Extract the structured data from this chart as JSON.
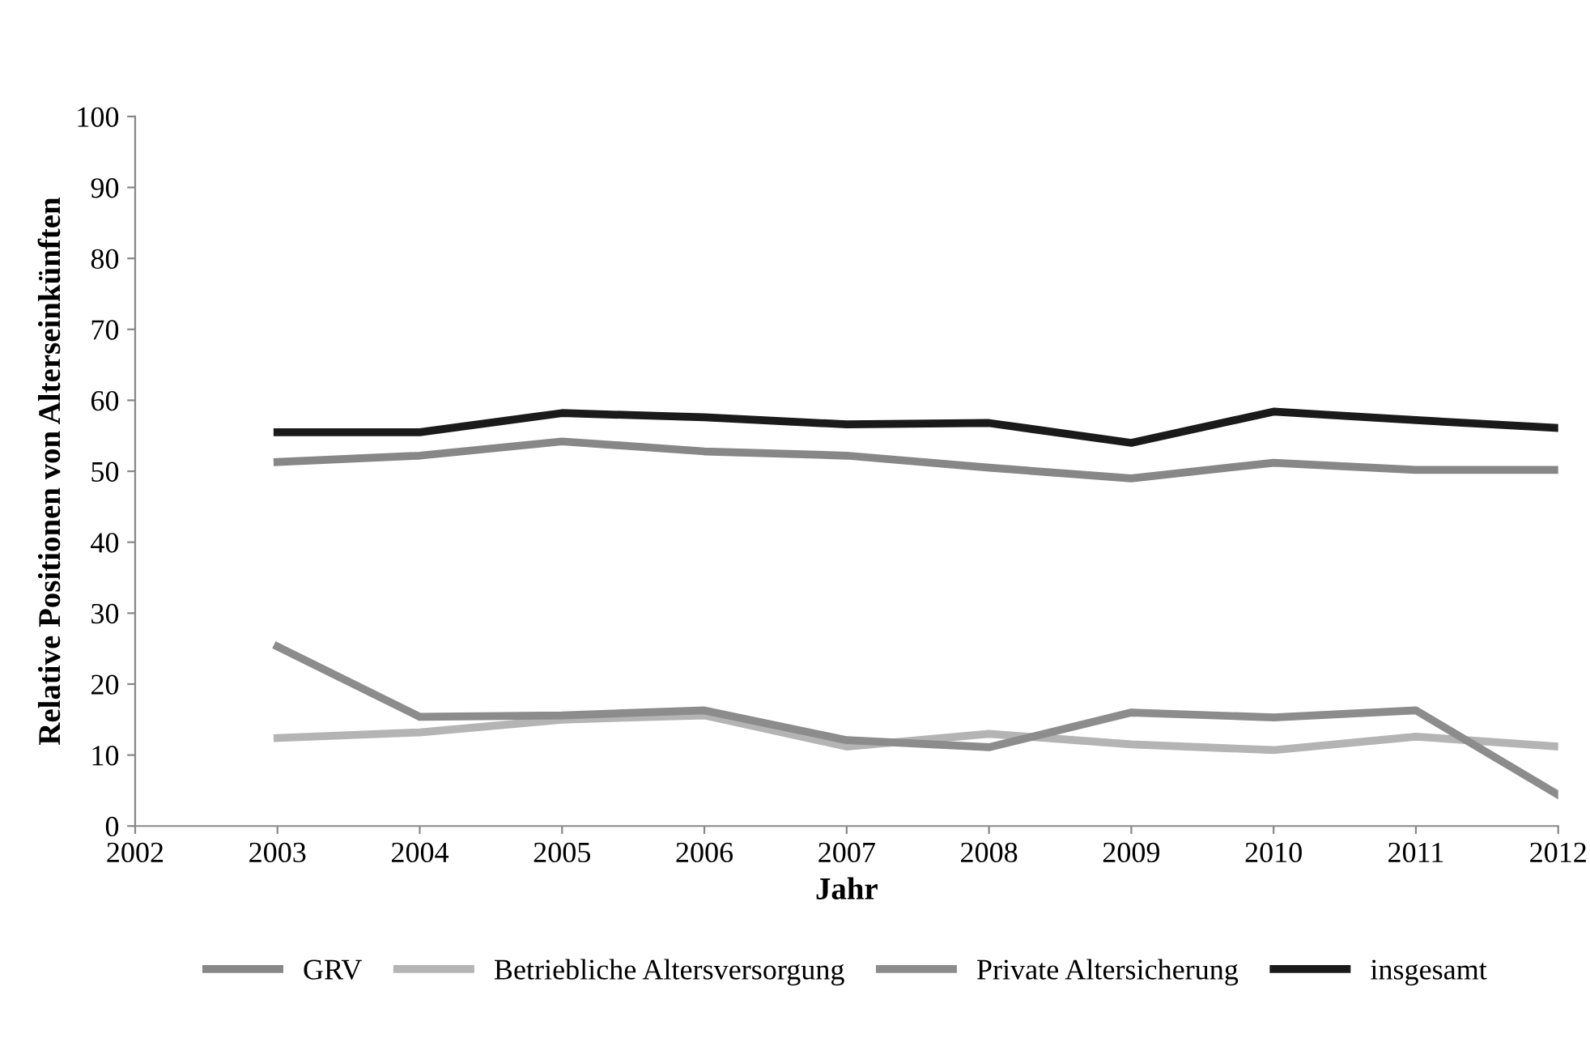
{
  "chart_data": {
    "type": "line",
    "xlabel": "Jahr",
    "ylabel": "Relative Positionen von Alterseinkünften",
    "x": [
      2003,
      2004,
      2005,
      2006,
      2007,
      2008,
      2009,
      2010,
      2011,
      2012
    ],
    "series": [
      {
        "name": "GRV",
        "color": "#878787",
        "values": [
          51.3,
          52.2,
          54.2,
          52.8,
          52.2,
          50.5,
          49.0,
          51.2,
          50.2,
          50.2
        ]
      },
      {
        "name": "Betriebliche Altersversorgung",
        "color": "#b4b4b4",
        "values": [
          12.4,
          13.2,
          15.0,
          15.6,
          11.2,
          13.0,
          11.5,
          10.7,
          12.6,
          11.2
        ]
      },
      {
        "name": "Private Altersicherung",
        "color": "#8c8c8c",
        "values": [
          25.3,
          15.4,
          15.6,
          16.3,
          12.1,
          11.1,
          16.0,
          15.3,
          16.3,
          4.4
        ]
      },
      {
        "name": "insgesamt",
        "color": "#1a1a1a",
        "values": [
          55.5,
          55.5,
          58.2,
          57.6,
          56.6,
          56.8,
          54.0,
          58.4,
          57.2,
          56.1
        ]
      }
    ],
    "xlim": [
      2002,
      2012
    ],
    "xticks": [
      2002,
      2003,
      2004,
      2005,
      2006,
      2007,
      2008,
      2009,
      2010,
      2011,
      2012
    ],
    "ylim": [
      0,
      100
    ],
    "yticks": [
      0,
      10,
      20,
      30,
      40,
      50,
      60,
      70,
      80,
      90,
      100
    ],
    "grid": false,
    "legend": "bottom",
    "marker": "none",
    "line_style": "solid"
  }
}
